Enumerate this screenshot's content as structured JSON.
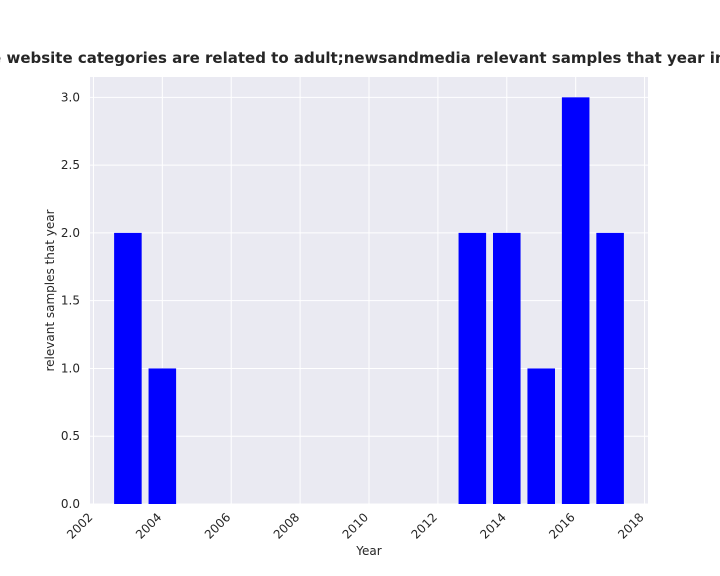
{
  "chart_data": {
    "type": "bar",
    "title": "Number of sites whose website categories are related to adult;newsandmedia relevant samples that year in privacy policies by year",
    "xlabel": "Year",
    "ylabel": "relevant samples that year",
    "x": [
      2003,
      2004,
      2013,
      2014,
      2015,
      2016,
      2017
    ],
    "values": [
      2,
      1,
      2,
      2,
      1,
      3,
      2
    ],
    "xlim": [
      2001.9,
      2018.1
    ],
    "ylim": [
      0,
      3.15
    ],
    "xticks": [
      "2002",
      "2004",
      "2006",
      "2008",
      "2010",
      "2012",
      "2014",
      "2016",
      "2018"
    ],
    "yticks": [
      "0.0",
      "0.5",
      "1.0",
      "1.5",
      "2.0",
      "2.5",
      "3.0"
    ],
    "grid": true,
    "bar_color": "#0000ff",
    "background_color": "#eaeaf2",
    "grid_color": "#ffffff"
  }
}
